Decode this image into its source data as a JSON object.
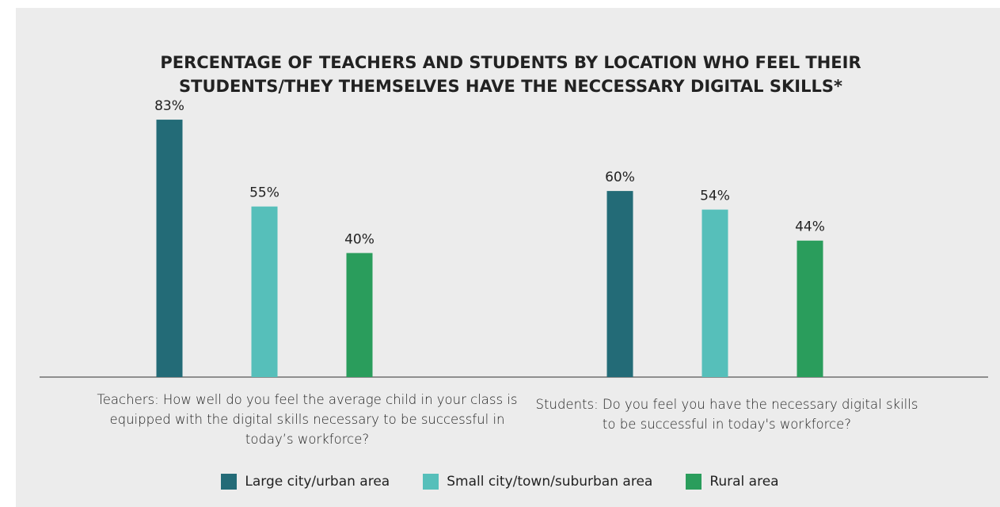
{
  "chart_data": {
    "type": "bar",
    "title": "PERCENTAGE OF TEACHERS AND STUDENTS BY LOCATION WHO FEEL THEIR STUDENTS/THEY THEMSELVES HAVE THE NECCESSARY DIGITAL SKILLS*",
    "categories": [
      "Teachers: How well do you feel the average child in your class is equipped with the digital skills necessary to be successful in today’s workforce?",
      "Students: Do you feel you have the necessary digital skills to be successful in today's workforce?"
    ],
    "series": [
      {
        "name": "Large city/urban area",
        "color": "#236b77",
        "values": [
          83,
          60
        ],
        "value_labels": [
          "83%",
          "60%"
        ]
      },
      {
        "name": "Small city/town/suburban area",
        "color": "#56bfba",
        "values": [
          55,
          54
        ],
        "value_labels": [
          "55%",
          "54%"
        ]
      },
      {
        "name": "Rural area",
        "color": "#2a9d5c",
        "values": [
          40,
          44
        ],
        "value_labels": [
          "40%",
          "44%"
        ]
      }
    ],
    "legend": "bottom"
  }
}
